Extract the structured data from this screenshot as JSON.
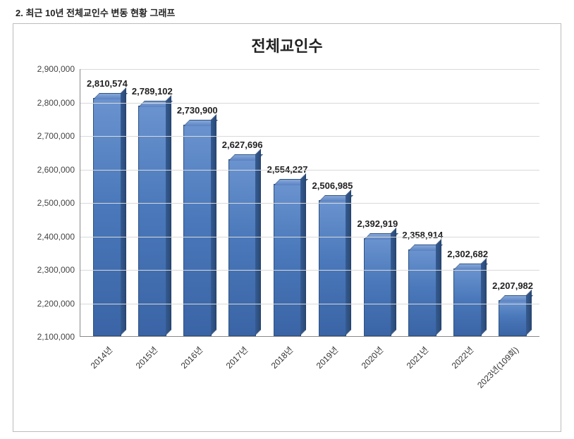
{
  "heading": "2. 최근 10년 전체교인수 변동 현황 그래프",
  "chart": {
    "type": "bar",
    "title": "전체교인수",
    "title_fontsize": 22,
    "label_fontsize": 12,
    "value_label_fontsize": 13,
    "background_color": "#ffffff",
    "grid_color": "#d9d9d9",
    "axis_color": "#888888",
    "bar_color_top": "#6a93cf",
    "bar_color_mid": "#4a78ba",
    "bar_color_bottom": "#3a64a5",
    "bar_border_color": "#2e527f",
    "bar_width": 0.62,
    "ylim": [
      2100000,
      2900000
    ],
    "ytick_step": 100000,
    "yticks": [
      {
        "value": 2100000,
        "label": "2,100,000"
      },
      {
        "value": 2200000,
        "label": "2,200,000"
      },
      {
        "value": 2300000,
        "label": "2,300,000"
      },
      {
        "value": 2400000,
        "label": "2,400,000"
      },
      {
        "value": 2500000,
        "label": "2,500,000"
      },
      {
        "value": 2600000,
        "label": "2,600,000"
      },
      {
        "value": 2700000,
        "label": "2,700,000"
      },
      {
        "value": 2800000,
        "label": "2,800,000"
      },
      {
        "value": 2900000,
        "label": "2,900,000"
      }
    ],
    "categories": [
      "2014년",
      "2015년",
      "2016년",
      "2017년",
      "2018년",
      "2019년",
      "2020년",
      "2021년",
      "2022년",
      "2023년(109회)"
    ],
    "values": [
      2810574,
      2789102,
      2730900,
      2627696,
      2554227,
      2506985,
      2392919,
      2358914,
      2302682,
      2207982
    ],
    "value_labels": [
      "2,810,574",
      "2,789,102",
      "2,730,900",
      "2,627,696",
      "2,554,227",
      "2,506,985",
      "2,392,919",
      "2,358,914",
      "2,302,682",
      "2,207,982"
    ],
    "xlabel_rotation_deg": -45
  }
}
